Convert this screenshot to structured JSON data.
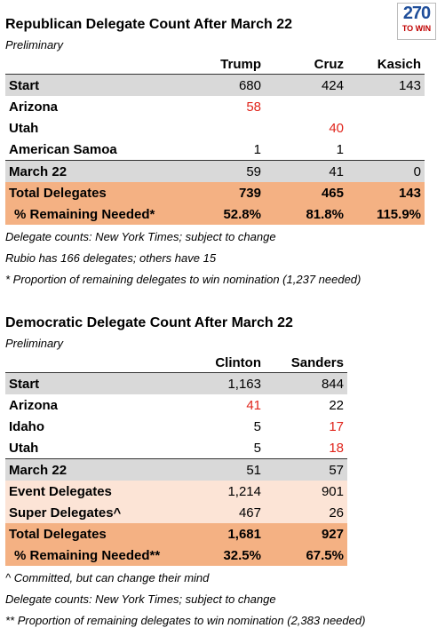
{
  "logo": {
    "number": "270",
    "tagline": "TO WIN"
  },
  "sections": [
    {
      "title": "Republican Delegate Count After March 22",
      "subtitle": "Preliminary",
      "headers": [
        "Trump",
        "Cruz",
        "Kasich"
      ],
      "rows": [
        {
          "label": "Start",
          "style": "gray",
          "cells": [
            "680",
            "424",
            "143"
          ]
        },
        {
          "label": "Arizona",
          "style": "plain",
          "cells": [
            "58",
            null,
            null
          ],
          "red": [
            0
          ]
        },
        {
          "label": "Utah",
          "style": "plain",
          "cells": [
            null,
            "40",
            null
          ],
          "red": [
            1
          ]
        },
        {
          "label": "American Samoa",
          "style": "plain",
          "cells": [
            "1",
            "1",
            null
          ]
        },
        {
          "label": "March 22",
          "style": "gray",
          "cells": [
            "59",
            "41",
            "0"
          ]
        },
        {
          "label": "Total Delegates",
          "style": "total",
          "cells": [
            "739",
            "465",
            "143"
          ]
        },
        {
          "label": "% Remaining Needed*",
          "style": "total",
          "cells": [
            "52.8%",
            "81.8%",
            "115.9%"
          ]
        }
      ],
      "notes": [
        "Delegate counts: New York Times; subject to change",
        "Rubio has 166 delegates; others have 15",
        "* Proportion of remaining delegates to win nomination (1,237 needed)"
      ]
    },
    {
      "title": "Democratic Delegate Count After March 22",
      "subtitle": "Preliminary",
      "headers": [
        "Clinton",
        "Sanders"
      ],
      "rows": [
        {
          "label": "Start",
          "style": "gray",
          "cells": [
            "1,163",
            "844"
          ]
        },
        {
          "label": "Arizona",
          "style": "plain",
          "cells": [
            "41",
            "22"
          ],
          "red": [
            0
          ]
        },
        {
          "label": "Idaho",
          "style": "plain",
          "cells": [
            "5",
            "17"
          ],
          "red": [
            1
          ]
        },
        {
          "label": "Utah",
          "style": "plain",
          "cells": [
            "5",
            "18"
          ],
          "red": [
            1
          ]
        },
        {
          "label": "March 22",
          "style": "gray",
          "cells": [
            "51",
            "57"
          ]
        },
        {
          "label": "Event Delegates",
          "style": "peach",
          "cells": [
            "1,214",
            "901"
          ]
        },
        {
          "label": "Super Delegates^",
          "style": "peach",
          "cells": [
            "467",
            "26"
          ]
        },
        {
          "label": "Total Delegates",
          "style": "total",
          "cells": [
            "1,681",
            "927"
          ]
        },
        {
          "label": "% Remaining Needed**",
          "style": "total",
          "cells": [
            "32.5%",
            "67.5%"
          ]
        }
      ],
      "notes": [
        "^ Committed, but can change their mind",
        "Delegate counts: New York Times; subject to change",
        "** Proportion of remaining delegates to win nomination (2,383 needed)"
      ]
    }
  ]
}
